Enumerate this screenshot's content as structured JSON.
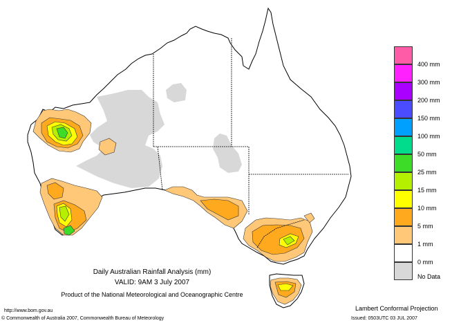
{
  "title": {
    "line1": "Daily Australian Rainfall Analysis (mm)",
    "line2": "VALID: 9AM  3 July 2007",
    "line3": "Product of the National Meteorological and Oceanographic Centre"
  },
  "footer": {
    "url": "http://www.bom.gov.au",
    "copyright": "© Commonwealth of Australia 2007, Commonwealth Bureau of Meteorology",
    "projection": "Lambert Conformal Projection",
    "issued": "Issued: 0503UTC 03 JUL 2007"
  },
  "legend": {
    "items": [
      {
        "label": "400 mm",
        "color": "#ff5ca8"
      },
      {
        "label": "300 mm",
        "color": "#ff22ff"
      },
      {
        "label": "200 mm",
        "color": "#aa00ff"
      },
      {
        "label": "150 mm",
        "color": "#4b4bff"
      },
      {
        "label": "100 mm",
        "color": "#00a0ff"
      },
      {
        "label": "50 mm",
        "color": "#00dc8c"
      },
      {
        "label": "25 mm",
        "color": "#3cdc28"
      },
      {
        "label": "15 mm",
        "color": "#b4f000"
      },
      {
        "label": "10 mm",
        "color": "#ffff00"
      },
      {
        "label": "5 mm",
        "color": "#ffaa1e"
      },
      {
        "label": "1 mm",
        "color": "#ffc878"
      },
      {
        "label": "0 mm",
        "color": "#ffffff"
      }
    ],
    "nodata_label": "No Data",
    "nodata_color": "#d8d8d8"
  },
  "colors": {
    "land": "#ffffff",
    "coast": "#000000",
    "border": "#000000",
    "nodata": "#d8d8d8",
    "r1": "#ffc878",
    "r5": "#ffaa1e",
    "r10": "#ffff00",
    "r15": "#b4f000",
    "r25": "#3cdc28"
  }
}
